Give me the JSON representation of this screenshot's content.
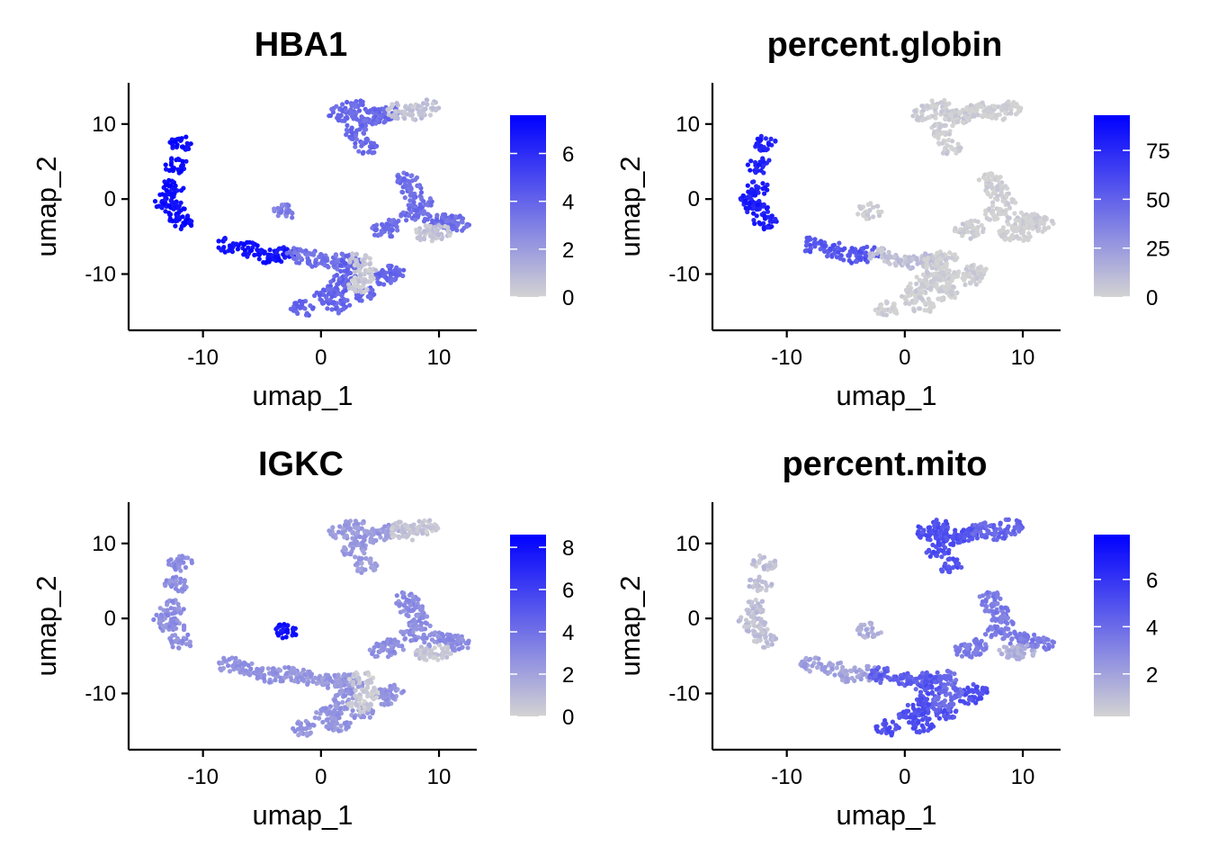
{
  "chart_data": [
    {
      "type": "scatter",
      "title": "HBA1",
      "xlabel": "umap_1",
      "ylabel": "umap_2",
      "xticks": [
        -10,
        0,
        10
      ],
      "yticks": [
        10,
        0,
        -10
      ],
      "xlim": [
        -16.3,
        13.2
      ],
      "ylim": [
        -17.5,
        15.5
      ],
      "color_scale": {
        "low": "#d3d3d3",
        "high": "#0000ff",
        "min": 0,
        "max": 7.6,
        "ticks": [
          6,
          4,
          2,
          0
        ]
      },
      "clusters": [
        {
          "cells": [
            [
              -11.9,
              7.4
            ],
            [
              -12.3,
              4.5
            ],
            [
              -12.6,
              1.5
            ],
            [
              -13.2,
              -0.3
            ],
            [
              -12.5,
              -1.2
            ],
            [
              -11.9,
              -3.0
            ]
          ],
          "level": 7.2
        },
        {
          "cells": [
            [
              -7.8,
              -6.1
            ],
            [
              -6.0,
              -6.8
            ],
            [
              -4.5,
              -7.6
            ],
            [
              -3.0,
              -7.4
            ]
          ],
          "level": 7.0
        },
        {
          "cells": [
            [
              -2.0,
              -7.5
            ],
            [
              -0.5,
              -8.0
            ],
            [
              1.0,
              -8.4
            ],
            [
              2.0,
              -8.2
            ]
          ],
          "level": 3.5
        },
        {
          "cells": [
            [
              2.6,
              -8.5
            ],
            [
              2.0,
              -10.5
            ],
            [
              1.2,
              -12.0
            ],
            [
              0.5,
              -13.0
            ],
            [
              -1.5,
              -14.6
            ],
            [
              1.5,
              -14.2
            ],
            [
              3.5,
              -12.5
            ],
            [
              5.5,
              -10.5
            ],
            [
              6.0,
              -9.8
            ]
          ],
          "level": 4.0
        },
        {
          "cells": [
            [
              3.4,
              -8.0
            ],
            [
              3.8,
              -10.0
            ],
            [
              3.2,
              -11.5
            ]
          ],
          "level": 0.4
        },
        {
          "cells": [
            [
              1.7,
              11.4
            ],
            [
              2.8,
              12.3
            ],
            [
              3.6,
              10.7
            ],
            [
              2.8,
              9.0
            ],
            [
              3.8,
              7.0
            ],
            [
              4.7,
              11.0
            ],
            [
              5.6,
              11.6
            ]
          ],
          "level": 3.8
        },
        {
          "cells": [
            [
              6.6,
              11.8
            ],
            [
              7.8,
              11.5
            ],
            [
              9.0,
              12.2
            ]
          ],
          "level": 0.6
        },
        {
          "cells": [
            [
              7.3,
              2.5
            ],
            [
              7.8,
              1.0
            ],
            [
              8.4,
              -0.5
            ],
            [
              7.8,
              -2.0
            ],
            [
              6.0,
              -3.8
            ],
            [
              5.2,
              -4.3
            ],
            [
              9.6,
              -2.8
            ],
            [
              10.8,
              -3.0
            ],
            [
              11.6,
              -3.3
            ]
          ],
          "level": 3.6
        },
        {
          "cells": [
            [
              10.0,
              -4.5
            ],
            [
              9.0,
              -4.6
            ]
          ],
          "level": 0.5
        },
        {
          "cells": [
            [
              -3.0,
              -1.6
            ]
          ],
          "level": 3.0
        }
      ]
    },
    {
      "type": "scatter",
      "title": "percent.globin",
      "xlabel": "umap_1",
      "ylabel": "umap_2",
      "xticks": [
        -10,
        0,
        10
      ],
      "yticks": [
        10,
        0,
        -10
      ],
      "xlim": [
        -16.3,
        13.2
      ],
      "ylim": [
        -17.5,
        15.5
      ],
      "color_scale": {
        "low": "#d3d3d3",
        "high": "#0000ff",
        "min": 0,
        "max": 93,
        "ticks": [
          75,
          50,
          25,
          0
        ]
      },
      "clusters": [
        {
          "cells": [
            [
              -11.9,
              7.4
            ],
            [
              -12.3,
              4.5
            ],
            [
              -12.6,
              1.5
            ],
            [
              -13.2,
              -0.3
            ],
            [
              -12.5,
              -1.2
            ],
            [
              -11.9,
              -3.0
            ]
          ],
          "level": 80
        },
        {
          "cells": [
            [
              -7.8,
              -6.1
            ],
            [
              -6.0,
              -6.8
            ],
            [
              -4.5,
              -7.6
            ],
            [
              -3.0,
              -7.4
            ]
          ],
          "level": 55
        },
        {
          "cells": [
            [
              -2.0,
              -7.5
            ],
            [
              -0.5,
              -8.0
            ],
            [
              1.0,
              -8.4
            ],
            [
              2.0,
              -8.2
            ]
          ],
          "level": 8
        },
        {
          "cells": [
            [
              2.6,
              -8.5
            ],
            [
              2.0,
              -10.5
            ],
            [
              1.2,
              -12.0
            ],
            [
              0.5,
              -13.0
            ],
            [
              -1.5,
              -14.6
            ],
            [
              1.5,
              -14.2
            ],
            [
              3.5,
              -12.5
            ],
            [
              5.5,
              -10.5
            ],
            [
              6.0,
              -9.8
            ]
          ],
          "level": 1
        },
        {
          "cells": [
            [
              3.4,
              -8.0
            ],
            [
              3.8,
              -10.0
            ],
            [
              3.2,
              -11.5
            ]
          ],
          "level": 0
        },
        {
          "cells": [
            [
              1.7,
              11.4
            ],
            [
              2.8,
              12.3
            ],
            [
              3.6,
              10.7
            ],
            [
              2.8,
              9.0
            ],
            [
              3.8,
              7.0
            ],
            [
              4.7,
              11.0
            ],
            [
              5.6,
              11.6
            ]
          ],
          "level": 2
        },
        {
          "cells": [
            [
              6.6,
              11.8
            ],
            [
              7.8,
              11.5
            ],
            [
              9.0,
              12.2
            ]
          ],
          "level": 0
        },
        {
          "cells": [
            [
              7.3,
              2.5
            ],
            [
              7.8,
              1.0
            ],
            [
              8.4,
              -0.5
            ],
            [
              7.8,
              -2.0
            ],
            [
              6.0,
              -3.8
            ],
            [
              5.2,
              -4.3
            ],
            [
              9.6,
              -2.8
            ],
            [
              10.8,
              -3.0
            ],
            [
              11.6,
              -3.3
            ]
          ],
          "level": 1
        },
        {
          "cells": [
            [
              10.0,
              -4.5
            ],
            [
              9.0,
              -4.6
            ]
          ],
          "level": 0
        },
        {
          "cells": [
            [
              -3.0,
              -1.6
            ]
          ],
          "level": 1
        }
      ]
    },
    {
      "type": "scatter",
      "title": "IGKC",
      "xlabel": "umap_1",
      "ylabel": "umap_2",
      "xticks": [
        -10,
        0,
        10
      ],
      "yticks": [
        10,
        0,
        -10
      ],
      "xlim": [
        -16.3,
        13.2
      ],
      "ylim": [
        -17.5,
        15.5
      ],
      "color_scale": {
        "low": "#d3d3d3",
        "high": "#0000ff",
        "min": 0,
        "max": 8.6,
        "ticks": [
          8,
          6,
          4,
          2,
          0
        ]
      },
      "clusters": [
        {
          "cells": [
            [
              -11.9,
              7.4
            ],
            [
              -12.3,
              4.5
            ],
            [
              -12.6,
              1.5
            ],
            [
              -13.2,
              -0.3
            ],
            [
              -12.5,
              -1.2
            ],
            [
              -11.9,
              -3.0
            ]
          ],
          "level": 2.8
        },
        {
          "cells": [
            [
              -7.8,
              -6.1
            ],
            [
              -6.0,
              -6.8
            ],
            [
              -4.5,
              -7.6
            ],
            [
              -3.0,
              -7.4
            ]
          ],
          "level": 2.6
        },
        {
          "cells": [
            [
              -2.0,
              -7.5
            ],
            [
              -0.5,
              -8.0
            ],
            [
              1.0,
              -8.4
            ],
            [
              2.0,
              -8.2
            ]
          ],
          "level": 2.4
        },
        {
          "cells": [
            [
              2.6,
              -8.5
            ],
            [
              2.0,
              -10.5
            ],
            [
              1.2,
              -12.0
            ],
            [
              0.5,
              -13.0
            ],
            [
              -1.5,
              -14.6
            ],
            [
              1.5,
              -14.2
            ],
            [
              3.5,
              -12.5
            ],
            [
              5.5,
              -10.5
            ],
            [
              6.0,
              -9.8
            ]
          ],
          "level": 2.5
        },
        {
          "cells": [
            [
              3.4,
              -8.0
            ],
            [
              3.8,
              -10.0
            ],
            [
              3.2,
              -11.5
            ]
          ],
          "level": 0.3
        },
        {
          "cells": [
            [
              1.7,
              11.4
            ],
            [
              2.8,
              12.3
            ],
            [
              3.6,
              10.7
            ],
            [
              2.8,
              9.0
            ],
            [
              3.8,
              7.0
            ],
            [
              4.7,
              11.0
            ],
            [
              5.6,
              11.6
            ]
          ],
          "level": 2.3
        },
        {
          "cells": [
            [
              6.6,
              11.8
            ],
            [
              7.8,
              11.5
            ],
            [
              9.0,
              12.2
            ]
          ],
          "level": 0.5
        },
        {
          "cells": [
            [
              7.3,
              2.5
            ],
            [
              7.8,
              1.0
            ],
            [
              8.4,
              -0.5
            ],
            [
              7.8,
              -2.0
            ],
            [
              6.0,
              -3.8
            ],
            [
              5.2,
              -4.3
            ],
            [
              9.6,
              -2.8
            ],
            [
              10.8,
              -3.0
            ],
            [
              11.6,
              -3.3
            ]
          ],
          "level": 2.8
        },
        {
          "cells": [
            [
              10.0,
              -4.5
            ],
            [
              9.0,
              -4.6
            ]
          ],
          "level": 0.6
        },
        {
          "cells": [
            [
              -3.0,
              -1.6
            ]
          ],
          "level": 8.0
        }
      ]
    },
    {
      "type": "scatter",
      "title": "percent.mito",
      "xlabel": "umap_1",
      "ylabel": "umap_2",
      "xticks": [
        -10,
        0,
        10
      ],
      "yticks": [
        10,
        0,
        -10
      ],
      "xlim": [
        -16.3,
        13.2
      ],
      "ylim": [
        -17.5,
        15.5
      ],
      "color_scale": {
        "low": "#d3d3d3",
        "high": "#0000ff",
        "min": 0.2,
        "max": 7.9,
        "ticks": [
          6,
          4,
          2
        ]
      },
      "clusters": [
        {
          "cells": [
            [
              -11.9,
              7.4
            ],
            [
              -12.3,
              4.5
            ],
            [
              -12.6,
              1.5
            ],
            [
              -13.2,
              -0.3
            ],
            [
              -12.5,
              -1.2
            ],
            [
              -11.9,
              -3.0
            ]
          ],
          "level": 0.9
        },
        {
          "cells": [
            [
              -7.8,
              -6.1
            ],
            [
              -6.0,
              -6.8
            ],
            [
              -4.5,
              -7.6
            ],
            [
              -3.0,
              -7.4
            ]
          ],
          "level": 2.0
        },
        {
          "cells": [
            [
              -2.0,
              -7.5
            ],
            [
              -0.5,
              -8.0
            ],
            [
              1.0,
              -8.4
            ],
            [
              2.0,
              -8.2
            ]
          ],
          "level": 4.5
        },
        {
          "cells": [
            [
              2.6,
              -8.5
            ],
            [
              2.0,
              -10.5
            ],
            [
              1.2,
              -12.0
            ],
            [
              0.5,
              -13.0
            ],
            [
              -1.5,
              -14.6
            ],
            [
              1.5,
              -14.2
            ],
            [
              3.5,
              -12.5
            ],
            [
              5.5,
              -10.5
            ],
            [
              6.0,
              -9.8
            ]
          ],
          "level": 5.0
        },
        {
          "cells": [
            [
              3.4,
              -8.0
            ],
            [
              3.8,
              -10.0
            ],
            [
              3.2,
              -11.5
            ]
          ],
          "level": 4.0
        },
        {
          "cells": [
            [
              1.7,
              11.4
            ],
            [
              2.8,
              12.3
            ],
            [
              3.6,
              10.7
            ],
            [
              2.8,
              9.0
            ],
            [
              3.8,
              7.0
            ],
            [
              4.7,
              11.0
            ],
            [
              5.6,
              11.6
            ]
          ],
          "level": 5.0
        },
        {
          "cells": [
            [
              6.6,
              11.8
            ],
            [
              7.8,
              11.5
            ],
            [
              9.0,
              12.2
            ]
          ],
          "level": 4.2
        },
        {
          "cells": [
            [
              7.3,
              2.5
            ],
            [
              7.8,
              1.0
            ],
            [
              8.4,
              -0.5
            ],
            [
              7.8,
              -2.0
            ],
            [
              6.0,
              -3.8
            ],
            [
              5.2,
              -4.3
            ],
            [
              9.6,
              -2.8
            ],
            [
              10.8,
              -3.0
            ],
            [
              11.6,
              -3.3
            ]
          ],
          "level": 3.4
        },
        {
          "cells": [
            [
              10.0,
              -4.5
            ],
            [
              9.0,
              -4.6
            ]
          ],
          "level": 1.5
        },
        {
          "cells": [
            [
              -3.0,
              -1.6
            ]
          ],
          "level": 1.5
        }
      ]
    }
  ]
}
